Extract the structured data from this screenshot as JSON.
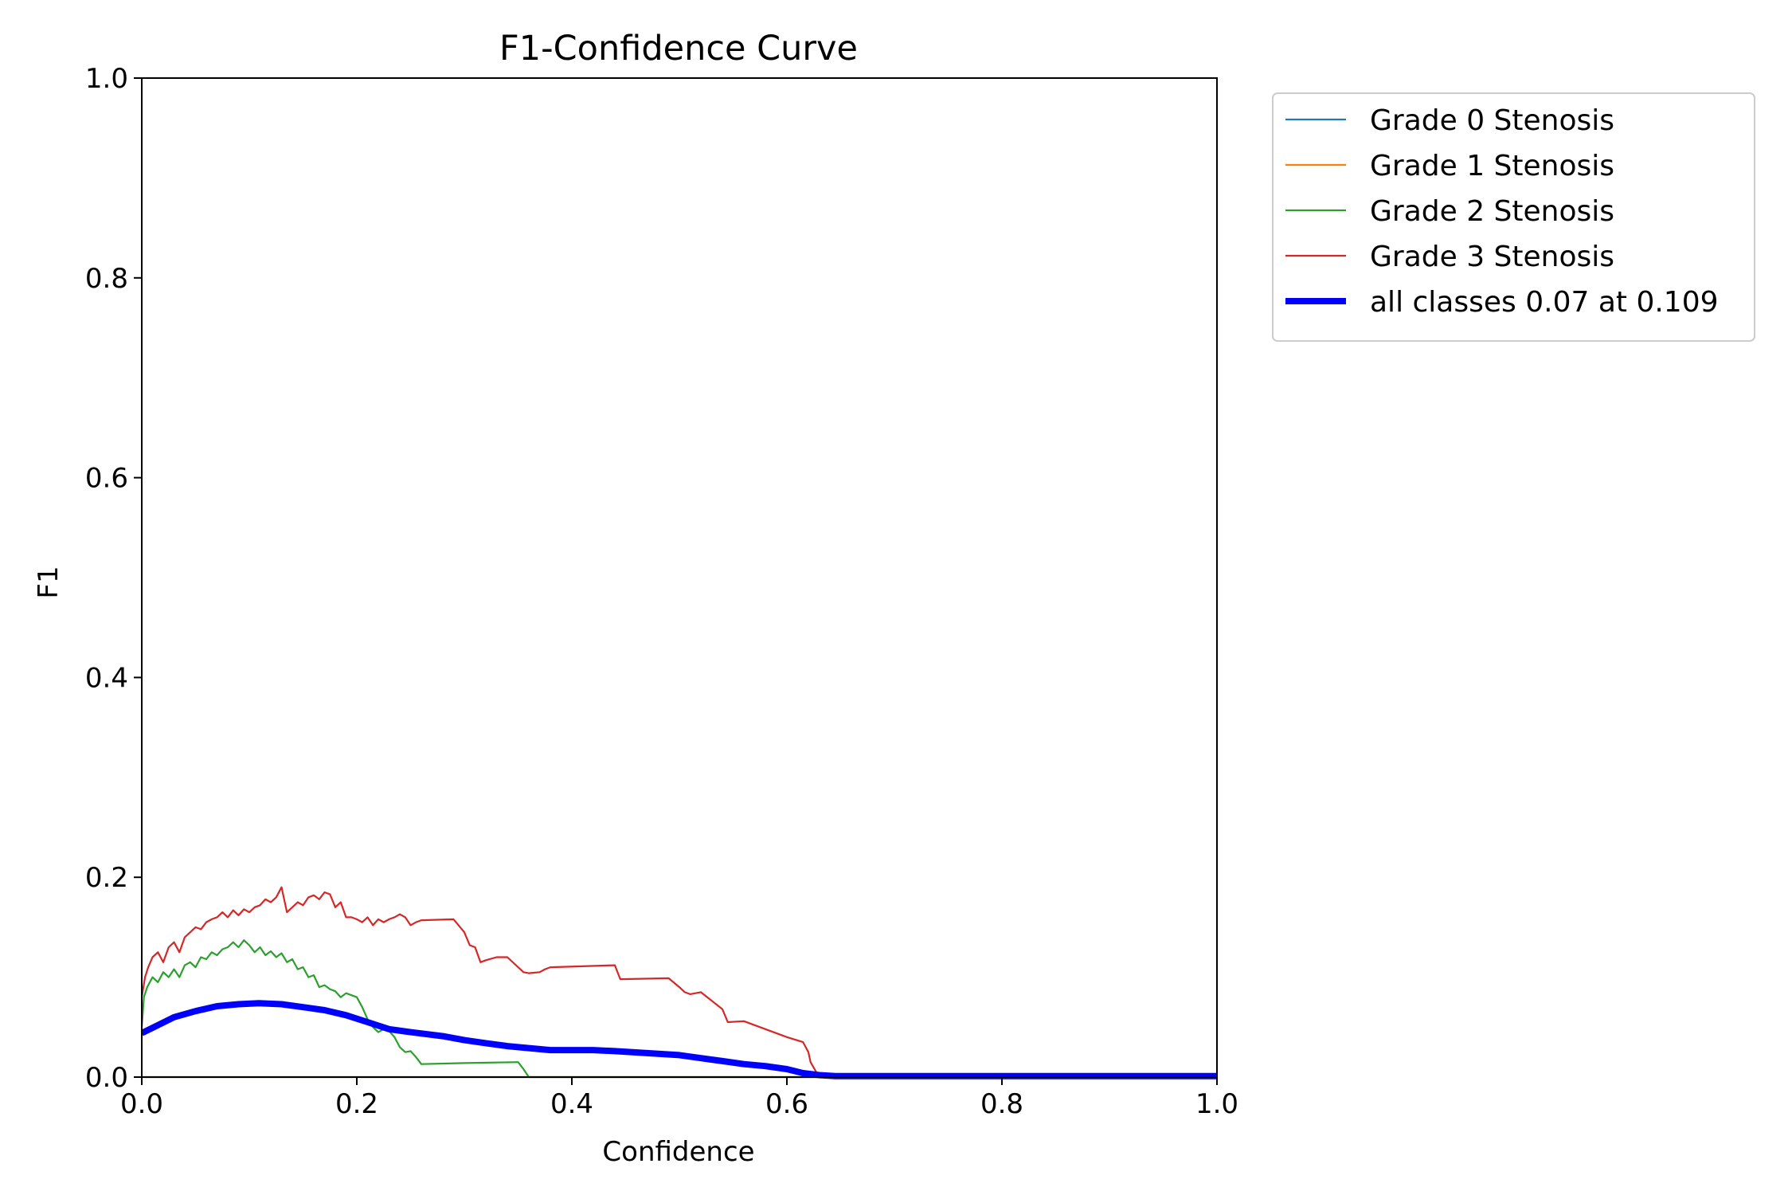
{
  "chart_data": {
    "type": "line",
    "title": "F1-Confidence Curve",
    "xlabel": "Confidence",
    "ylabel": "F1",
    "xlim": [
      0,
      1
    ],
    "ylim": [
      0,
      1
    ],
    "grid": false,
    "legend_position": "outside-top-right",
    "x_ticks": [
      "0.0",
      "0.2",
      "0.4",
      "0.6",
      "0.8",
      "1.0"
    ],
    "y_ticks": [
      "0.0",
      "0.2",
      "0.4",
      "0.6",
      "0.8",
      "1.0"
    ],
    "series": [
      {
        "name": "Grade 0 Stenosis",
        "color": "#1f77b4",
        "width": "thin",
        "x": [
          0,
          1
        ],
        "y": [
          0,
          0
        ]
      },
      {
        "name": "Grade 1 Stenosis",
        "color": "#ff7f0e",
        "width": "thin",
        "x": [
          0,
          1
        ],
        "y": [
          0,
          0
        ]
      },
      {
        "name": "Grade 2 Stenosis",
        "color": "#2ca02c",
        "width": "thin",
        "x": [
          0,
          0.002,
          0.005,
          0.01,
          0.015,
          0.02,
          0.025,
          0.03,
          0.035,
          0.04,
          0.045,
          0.05,
          0.055,
          0.06,
          0.065,
          0.07,
          0.075,
          0.08,
          0.085,
          0.09,
          0.095,
          0.1,
          0.105,
          0.11,
          0.115,
          0.12,
          0.125,
          0.13,
          0.135,
          0.14,
          0.145,
          0.15,
          0.155,
          0.16,
          0.165,
          0.17,
          0.175,
          0.18,
          0.185,
          0.19,
          0.195,
          0.2,
          0.205,
          0.21,
          0.215,
          0.22,
          0.225,
          0.23,
          0.235,
          0.24,
          0.245,
          0.25,
          0.255,
          0.26,
          0.3,
          0.35,
          0.355,
          0.36,
          0.4,
          0.6,
          0.8,
          1.0
        ],
        "y": [
          0.05,
          0.08,
          0.09,
          0.1,
          0.095,
          0.105,
          0.1,
          0.108,
          0.1,
          0.112,
          0.115,
          0.11,
          0.12,
          0.118,
          0.125,
          0.122,
          0.128,
          0.13,
          0.135,
          0.13,
          0.137,
          0.132,
          0.125,
          0.13,
          0.122,
          0.126,
          0.12,
          0.124,
          0.115,
          0.118,
          0.108,
          0.11,
          0.1,
          0.102,
          0.09,
          0.092,
          0.088,
          0.086,
          0.08,
          0.084,
          0.082,
          0.08,
          0.07,
          0.058,
          0.05,
          0.045,
          0.048,
          0.046,
          0.04,
          0.03,
          0.025,
          0.026,
          0.02,
          0.013,
          0.014,
          0.015,
          0.008,
          0,
          0,
          0,
          0,
          0
        ]
      },
      {
        "name": "Grade 3 Stenosis",
        "color": "#d62728",
        "width": "thin",
        "x": [
          0,
          0.003,
          0.006,
          0.01,
          0.015,
          0.02,
          0.025,
          0.03,
          0.035,
          0.04,
          0.045,
          0.05,
          0.055,
          0.06,
          0.065,
          0.07,
          0.075,
          0.08,
          0.085,
          0.09,
          0.095,
          0.1,
          0.105,
          0.11,
          0.115,
          0.12,
          0.125,
          0.13,
          0.135,
          0.14,
          0.145,
          0.15,
          0.155,
          0.16,
          0.165,
          0.17,
          0.175,
          0.18,
          0.185,
          0.19,
          0.195,
          0.2,
          0.205,
          0.21,
          0.215,
          0.22,
          0.225,
          0.23,
          0.235,
          0.24,
          0.245,
          0.25,
          0.255,
          0.26,
          0.29,
          0.3,
          0.305,
          0.31,
          0.315,
          0.32,
          0.33,
          0.34,
          0.355,
          0.36,
          0.37,
          0.375,
          0.38,
          0.44,
          0.445,
          0.49,
          0.5,
          0.505,
          0.51,
          0.52,
          0.54,
          0.545,
          0.56,
          0.6,
          0.615,
          0.62,
          0.622,
          0.63,
          0.8,
          1.0
        ],
        "y": [
          0.08,
          0.1,
          0.11,
          0.12,
          0.125,
          0.115,
          0.13,
          0.135,
          0.125,
          0.14,
          0.145,
          0.15,
          0.148,
          0.155,
          0.158,
          0.16,
          0.165,
          0.16,
          0.167,
          0.162,
          0.168,
          0.165,
          0.17,
          0.172,
          0.178,
          0.175,
          0.18,
          0.19,
          0.165,
          0.17,
          0.175,
          0.172,
          0.18,
          0.182,
          0.178,
          0.185,
          0.183,
          0.17,
          0.175,
          0.16,
          0.16,
          0.158,
          0.155,
          0.16,
          0.152,
          0.158,
          0.155,
          0.158,
          0.16,
          0.163,
          0.16,
          0.152,
          0.155,
          0.157,
          0.158,
          0.145,
          0.132,
          0.13,
          0.115,
          0.117,
          0.12,
          0.12,
          0.105,
          0.104,
          0.105,
          0.108,
          0.11,
          0.112,
          0.098,
          0.099,
          0.09,
          0.085,
          0.083,
          0.085,
          0.068,
          0.055,
          0.056,
          0.04,
          0.035,
          0.025,
          0.015,
          0,
          0,
          0
        ]
      },
      {
        "name": "all classes 0.07 at 0.109",
        "color": "#0000ff",
        "width": "thick",
        "x": [
          0,
          0.015,
          0.03,
          0.05,
          0.07,
          0.09,
          0.109,
          0.13,
          0.15,
          0.17,
          0.19,
          0.21,
          0.23,
          0.25,
          0.28,
          0.3,
          0.32,
          0.34,
          0.36,
          0.38,
          0.4,
          0.42,
          0.44,
          0.47,
          0.5,
          0.52,
          0.54,
          0.56,
          0.58,
          0.6,
          0.615,
          0.63,
          0.645,
          0.7,
          0.8,
          1.0
        ],
        "y": [
          0.044,
          0.052,
          0.06,
          0.066,
          0.071,
          0.073,
          0.074,
          0.073,
          0.07,
          0.067,
          0.062,
          0.055,
          0.048,
          0.045,
          0.041,
          0.037,
          0.034,
          0.031,
          0.029,
          0.027,
          0.027,
          0.027,
          0.026,
          0.024,
          0.022,
          0.019,
          0.016,
          0.013,
          0.011,
          0.008,
          0.004,
          0.002,
          0.001,
          0.001,
          0.001,
          0.001
        ]
      }
    ]
  }
}
